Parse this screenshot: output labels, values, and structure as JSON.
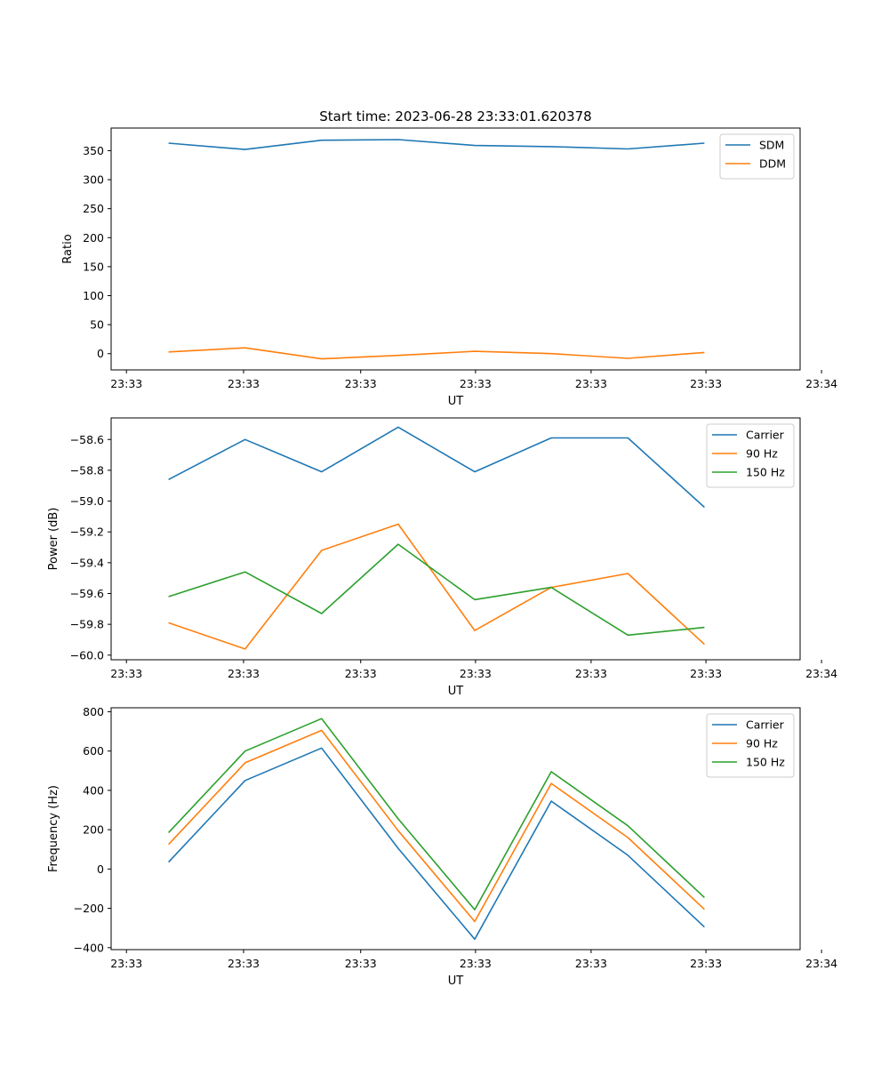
{
  "figure_title": "Start time: 2023-06-28 23:33:01.620378",
  "chart_data": [
    {
      "type": "line",
      "title": "Start time: 2023-06-28 23:33:01.620378",
      "xlabel": "UT",
      "ylabel": "Ratio",
      "x_ticklabels": [
        "23:33",
        "23:33",
        "23:33",
        "23:33",
        "23:33",
        "23:33",
        "23:34"
      ],
      "x": [
        1,
        2,
        3,
        4,
        5,
        6,
        7,
        8
      ],
      "xlim": [
        0.25,
        9.25
      ],
      "ylim": [
        -28,
        389
      ],
      "yticks": [
        0,
        50,
        100,
        150,
        200,
        250,
        300,
        350
      ],
      "legend": "top-right",
      "grid": false,
      "series": [
        {
          "name": "SDM",
          "color": "#1f77b4",
          "values": [
            363,
            352,
            368,
            369,
            359,
            357,
            353,
            363
          ]
        },
        {
          "name": "DDM",
          "color": "#ff7f0e",
          "values": [
            3,
            10,
            -9,
            -3,
            4,
            0,
            -8,
            2
          ]
        }
      ]
    },
    {
      "type": "line",
      "title": "",
      "xlabel": "UT",
      "ylabel": "Power (dB)",
      "x_ticklabels": [
        "23:33",
        "23:33",
        "23:33",
        "23:33",
        "23:33",
        "23:33",
        "23:34"
      ],
      "x": [
        1,
        2,
        3,
        4,
        5,
        6,
        7,
        8
      ],
      "xlim": [
        0.25,
        9.25
      ],
      "ylim": [
        -60.03,
        -58.46
      ],
      "yticks": [
        -60.0,
        -59.8,
        -59.6,
        -59.4,
        -59.2,
        -59.0,
        -58.8,
        -58.6
      ],
      "ytick_labels": [
        "−60.0",
        "−59.8",
        "−59.6",
        "−59.4",
        "−59.2",
        "−59.0",
        "−58.8",
        "−58.6"
      ],
      "legend": "top-right",
      "grid": false,
      "series": [
        {
          "name": "Carrier",
          "color": "#1f77b4",
          "values": [
            -58.86,
            -58.6,
            -58.81,
            -58.52,
            -58.81,
            -58.59,
            -58.59,
            -59.04
          ]
        },
        {
          "name": "90 Hz",
          "color": "#ff7f0e",
          "values": [
            -59.79,
            -59.96,
            -59.32,
            -59.15,
            -59.84,
            -59.56,
            -59.47,
            -59.93
          ]
        },
        {
          "name": "150 Hz",
          "color": "#2ca02c",
          "values": [
            -59.62,
            -59.46,
            -59.73,
            -59.28,
            -59.64,
            -59.56,
            -59.87,
            -59.82
          ]
        }
      ]
    },
    {
      "type": "line",
      "title": "",
      "xlabel": "UT",
      "ylabel": "Frequency (Hz)",
      "x_ticklabels": [
        "23:33",
        "23:33",
        "23:33",
        "23:33",
        "23:33",
        "23:33",
        "23:34"
      ],
      "x": [
        1,
        2,
        3,
        4,
        5,
        6,
        7,
        8
      ],
      "xlim": [
        0.25,
        9.25
      ],
      "ylim": [
        -410,
        820
      ],
      "yticks": [
        -400,
        -200,
        0,
        200,
        400,
        600,
        800
      ],
      "ytick_labels": [
        "−400",
        "−200",
        "0",
        "200",
        "400",
        "600",
        "800"
      ],
      "legend": "top-right",
      "grid": false,
      "series": [
        {
          "name": "Carrier",
          "color": "#1f77b4",
          "values": [
            35,
            450,
            615,
            105,
            -357,
            345,
            70,
            -295
          ]
        },
        {
          "name": "90 Hz",
          "color": "#ff7f0e",
          "values": [
            125,
            540,
            705,
            195,
            -267,
            435,
            160,
            -205
          ]
        },
        {
          "name": "150 Hz",
          "color": "#2ca02c",
          "values": [
            185,
            600,
            765,
            255,
            -207,
            495,
            220,
            -145
          ]
        }
      ]
    }
  ]
}
